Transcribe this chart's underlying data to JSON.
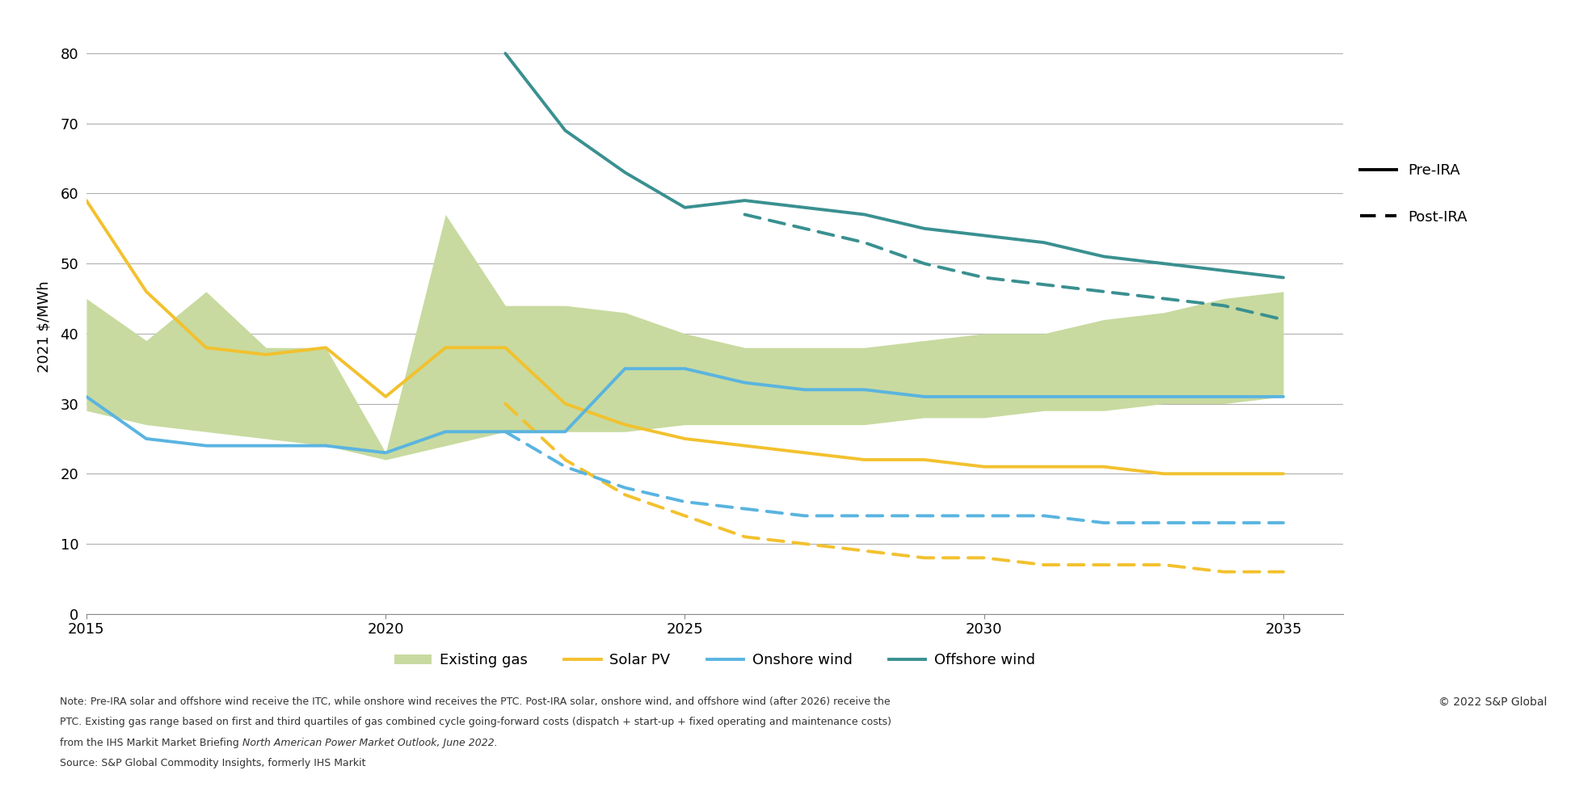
{
  "title": "",
  "ylabel": "2021 $/MWh",
  "ylim": [
    0,
    82
  ],
  "yticks": [
    0,
    10,
    20,
    30,
    40,
    50,
    60,
    70,
    80
  ],
  "xlim": [
    2015,
    2036
  ],
  "xticks": [
    2015,
    2020,
    2025,
    2030,
    2035
  ],
  "bg_color": "#ffffff",
  "grid_color": "#b0b0b0",
  "gas_band_upper": {
    "years": [
      2015,
      2016,
      2017,
      2018,
      2019,
      2020,
      2021,
      2022,
      2023,
      2024,
      2025,
      2026,
      2027,
      2028,
      2029,
      2030,
      2031,
      2032,
      2033,
      2034,
      2035
    ],
    "values": [
      45,
      39,
      46,
      38,
      38,
      23,
      57,
      44,
      44,
      43,
      40,
      38,
      38,
      38,
      39,
      40,
      40,
      42,
      43,
      45,
      46
    ]
  },
  "gas_band_lower": {
    "years": [
      2015,
      2016,
      2017,
      2018,
      2019,
      2020,
      2021,
      2022,
      2023,
      2024,
      2025,
      2026,
      2027,
      2028,
      2029,
      2030,
      2031,
      2032,
      2033,
      2034,
      2035
    ],
    "values": [
      29,
      27,
      26,
      25,
      24,
      22,
      24,
      26,
      26,
      26,
      27,
      27,
      27,
      27,
      28,
      28,
      29,
      29,
      30,
      30,
      31
    ]
  },
  "gas_color": "#c8da9f",
  "solar_pre": {
    "years": [
      2015,
      2016,
      2017,
      2018,
      2019,
      2020,
      2021,
      2022,
      2023,
      2024,
      2025,
      2026,
      2027,
      2028,
      2029,
      2030,
      2031,
      2032,
      2033,
      2034,
      2035
    ],
    "values": [
      59,
      46,
      38,
      37,
      38,
      31,
      38,
      38,
      30,
      27,
      25,
      24,
      23,
      22,
      22,
      21,
      21,
      21,
      20,
      20,
      20
    ]
  },
  "solar_post": {
    "years": [
      2022,
      2023,
      2024,
      2025,
      2026,
      2027,
      2028,
      2029,
      2030,
      2031,
      2032,
      2033,
      2034,
      2035
    ],
    "values": [
      30,
      22,
      17,
      14,
      11,
      10,
      9,
      8,
      8,
      7,
      7,
      7,
      6,
      6
    ]
  },
  "solar_color": "#f2c12e",
  "onshore_pre": {
    "years": [
      2015,
      2016,
      2017,
      2018,
      2019,
      2020,
      2021,
      2022,
      2023,
      2024,
      2025,
      2026,
      2027,
      2028,
      2029,
      2030,
      2031,
      2032,
      2033,
      2034,
      2035
    ],
    "values": [
      31,
      25,
      24,
      24,
      24,
      23,
      26,
      26,
      26,
      35,
      35,
      33,
      32,
      32,
      31,
      31,
      31,
      31,
      31,
      31,
      31
    ]
  },
  "onshore_post": {
    "years": [
      2022,
      2023,
      2024,
      2025,
      2026,
      2027,
      2028,
      2029,
      2030,
      2031,
      2032,
      2033,
      2034,
      2035
    ],
    "values": [
      26,
      21,
      18,
      16,
      15,
      14,
      14,
      14,
      14,
      14,
      13,
      13,
      13,
      13
    ]
  },
  "onshore_color": "#5ab4e0",
  "offshore_pre": {
    "years": [
      2022,
      2023,
      2024,
      2025,
      2026,
      2027,
      2028,
      2029,
      2030,
      2031,
      2032,
      2033,
      2034,
      2035
    ],
    "values": [
      80,
      69,
      63,
      58,
      59,
      58,
      57,
      55,
      54,
      53,
      51,
      50,
      49,
      48
    ]
  },
  "offshore_post": {
    "years": [
      2026,
      2027,
      2028,
      2029,
      2030,
      2031,
      2032,
      2033,
      2034,
      2035
    ],
    "values": [
      57,
      55,
      53,
      50,
      48,
      47,
      46,
      45,
      44,
      42
    ]
  },
  "offshore_color": "#3a9090",
  "note_line1": "Note: Pre-IRA solar and offshore wind receive the ITC, while onshore wind receives the PTC. Post-IRA solar, onshore wind, and offshore wind (after 2026) receive the",
  "note_line2": "PTC. Existing gas range based on first and third quartiles of gas combined cycle going-forward costs (dispatch + start-up + fixed operating and maintenance costs)",
  "note_line3_normal": "from the IHS Markit Market Briefing ",
  "note_line3_italic": "North American Power Market Outlook, June 2022.",
  "note_line4": "Source: S&P Global Commodity Insights, formerly IHS Markit",
  "copyright_text": "© 2022 S&P Global",
  "legend_gas_label": "Existing gas",
  "legend_solar_label": "Solar PV",
  "legend_onshore_label": "Onshore wind",
  "legend_offshore_label": "Offshore wind",
  "legend_preIRA_label": "Pre-IRA",
  "legend_postIRA_label": "Post-IRA"
}
